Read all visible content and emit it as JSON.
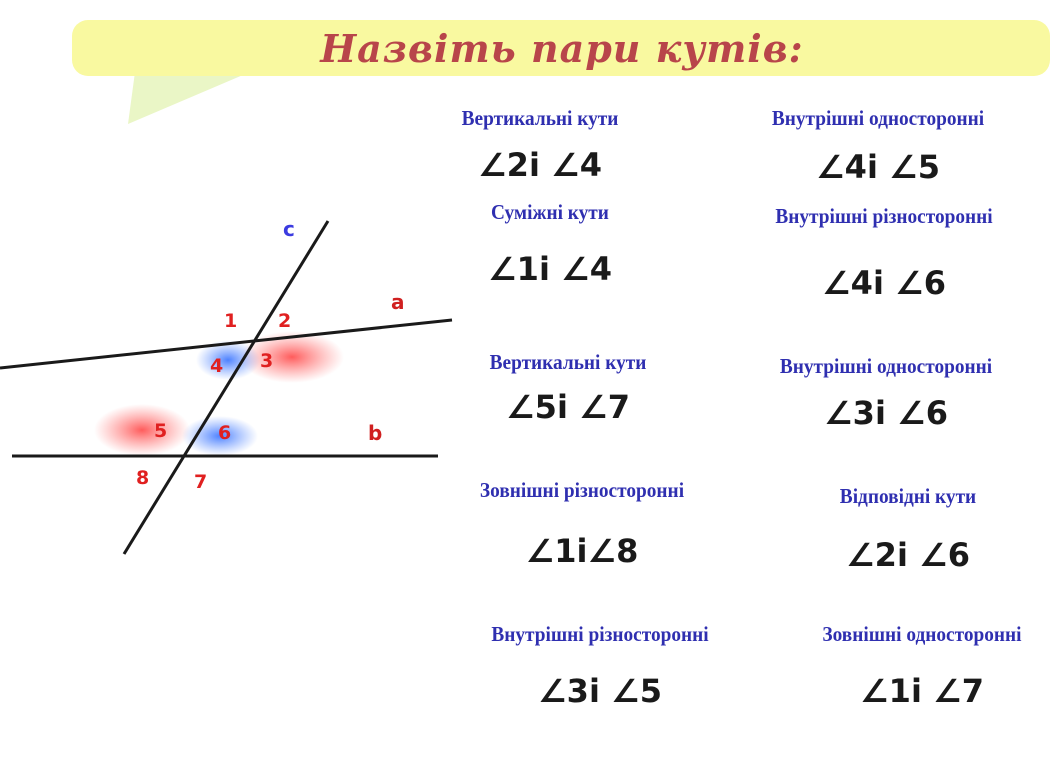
{
  "title": "Назвіть пари кутів:",
  "colors": {
    "bubble": "#f9f9a0",
    "bubble_tail": "#eaf6c6",
    "title": "#b8454a",
    "label": "#2f2fb0",
    "line_label_c": "#3b3be0",
    "angle_number": "#e02020",
    "shade_red": "#ff6e6e",
    "shade_blue": "#5a8cff"
  },
  "diagram": {
    "lines": {
      "a": "a",
      "b": "b",
      "c": "c"
    },
    "angles": [
      "1",
      "2",
      "3",
      "4",
      "5",
      "6",
      "7",
      "8"
    ]
  },
  "pairs": {
    "left": [
      {
        "label": "Вертикальні кути",
        "angles": "∠2і ∠4"
      },
      {
        "label": "Суміжні кути",
        "angles": "∠1і ∠4"
      },
      {
        "label": "Вертикальні кути",
        "angles": "∠5і ∠7"
      },
      {
        "label": "Зовнішні різносторонні",
        "angles": "∠1і∠8"
      },
      {
        "label": "Внутрішні різносторонні",
        "angles": "∠3і ∠5"
      }
    ],
    "right": [
      {
        "label": "Внутрішні односторонні",
        "angles": "∠4і ∠5"
      },
      {
        "label": "Внутрішні різносторонні",
        "angles": "∠4і ∠6"
      },
      {
        "label": "Внутрішні односторонні",
        "angles": "∠3і ∠6"
      },
      {
        "label": "Відповідні кути",
        "angles": "∠2і ∠6"
      },
      {
        "label": "Зовнішні односторонні",
        "angles": "∠1і ∠7"
      }
    ]
  }
}
